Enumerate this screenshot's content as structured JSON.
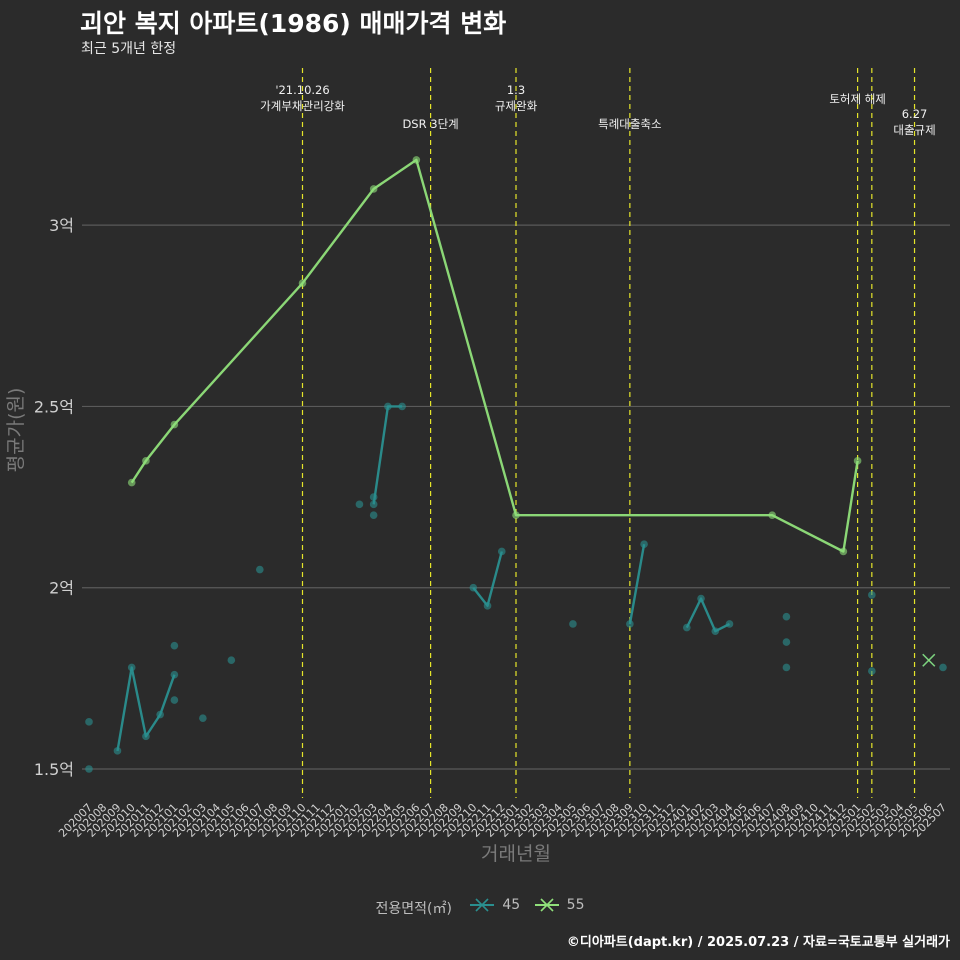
{
  "header": {
    "title": "괴안 복지 아파트(1986) 매매가격 변화",
    "subtitle": "최근 5개년 한정"
  },
  "footer": "©디아파트(dapt.kr) / 2025.07.23 / 자료=국토교통부 실거래가",
  "legend": {
    "title": "전용면적(㎡)",
    "items": [
      {
        "label": "45",
        "color": "#2a8f8f"
      },
      {
        "label": "55",
        "color": "#90e07a"
      }
    ]
  },
  "chart_data": {
    "type": "line",
    "title": "괴안 복지 아파트(1986) 매매가격 변화",
    "subtitle": "최근 5개년 한정",
    "xlabel": "거래년월",
    "ylabel": "평균가(원)",
    "ylim": [
      1.42,
      3.45
    ],
    "yticks": [
      {
        "value": 1.5,
        "label": "1.5억"
      },
      {
        "value": 2.0,
        "label": "2억"
      },
      {
        "value": 2.5,
        "label": "2.5억"
      },
      {
        "value": 3.0,
        "label": "3억"
      }
    ],
    "categories": [
      "202007",
      "202008",
      "202009",
      "202010",
      "202011",
      "202012",
      "202101",
      "202102",
      "202103",
      "202104",
      "202105",
      "202106",
      "202107",
      "202108",
      "202109",
      "202110",
      "202111",
      "202112",
      "202201",
      "202202",
      "202203",
      "202204",
      "202205",
      "202206",
      "202207",
      "202208",
      "202209",
      "202210",
      "202211",
      "202212",
      "202301",
      "202302",
      "202303",
      "202304",
      "202305",
      "202306",
      "202307",
      "202308",
      "202309",
      "202310",
      "202311",
      "202312",
      "202401",
      "202402",
      "202403",
      "202404",
      "202405",
      "202406",
      "202407",
      "202408",
      "202409",
      "202410",
      "202411",
      "202412",
      "202501",
      "202502",
      "202503",
      "202504",
      "202505",
      "202506",
      "202507"
    ],
    "series": [
      {
        "name": "45",
        "color": "#2a8f8f",
        "line_points": [
          [
            "202009",
            1.55
          ],
          [
            "202010",
            1.78
          ],
          [
            "202011",
            1.59
          ],
          [
            "202012",
            1.65
          ],
          [
            "202101",
            1.76
          ]
        ],
        "line_segments": [
          [
            [
              "202203",
              2.23
            ],
            [
              "202204",
              2.5
            ],
            [
              "202205",
              2.5
            ]
          ],
          [
            [
              "202210",
              2.0
            ],
            [
              "202211",
              1.95
            ],
            [
              "202212",
              2.1
            ]
          ],
          [
            [
              "202309",
              1.9
            ],
            [
              "202310",
              2.12
            ]
          ],
          [
            [
              "202401",
              1.89
            ],
            [
              "202402",
              1.97
            ],
            [
              "202403",
              1.88
            ],
            [
              "202404",
              1.9
            ]
          ]
        ],
        "points": [
          [
            "202007",
            1.63
          ],
          [
            "202007",
            1.5
          ],
          [
            "202101",
            1.84
          ],
          [
            "202101",
            1.69
          ],
          [
            "202103",
            1.64
          ],
          [
            "202105",
            1.8
          ],
          [
            "202107",
            2.05
          ],
          [
            "202202",
            2.23
          ],
          [
            "202203",
            2.25
          ],
          [
            "202203",
            2.2
          ],
          [
            "202305",
            1.9
          ],
          [
            "202408",
            1.92
          ],
          [
            "202408",
            1.85
          ],
          [
            "202408",
            1.78
          ],
          [
            "202502",
            1.98
          ],
          [
            "202502",
            1.77
          ],
          [
            "202507",
            1.78
          ]
        ],
        "cross": [
          [
            "202506",
            1.8
          ]
        ]
      },
      {
        "name": "55",
        "color": "#90e07a",
        "line_points": [
          [
            "202010",
            2.29
          ],
          [
            "202011",
            2.35
          ],
          [
            "202101",
            2.45
          ],
          [
            "202110",
            2.84
          ],
          [
            "202203",
            3.1
          ],
          [
            "202206",
            3.18
          ],
          [
            "202301",
            2.2
          ],
          [
            "202407",
            2.2
          ],
          [
            "202412",
            2.1
          ],
          [
            "202501",
            2.35
          ]
        ],
        "points": [
          [
            "202010",
            2.29
          ],
          [
            "202011",
            2.35
          ],
          [
            "202101",
            2.45
          ],
          [
            "202110",
            2.84
          ],
          [
            "202203",
            3.1
          ],
          [
            "202206",
            3.18
          ],
          [
            "202301",
            2.2
          ],
          [
            "202407",
            2.2
          ],
          [
            "202412",
            2.1
          ],
          [
            "202501",
            2.35
          ]
        ],
        "cross": [
          [
            "202506",
            1.8
          ]
        ]
      }
    ],
    "events": [
      {
        "x": "202110",
        "lines": [
          "'21.10.26",
          "가계부채관리강화"
        ],
        "row": 0
      },
      {
        "x": "202207",
        "lines": [
          "DSR 3단계"
        ],
        "row": 2
      },
      {
        "x": "202301",
        "lines": [
          "1.3",
          "규제완화"
        ],
        "row": 0
      },
      {
        "x": "202309",
        "lines": [
          "특례대출축소"
        ],
        "row": 2
      },
      {
        "x": "202501",
        "lines": [
          "토허제 해제"
        ],
        "row": 1,
        "align": "center-offset"
      },
      {
        "x": "202502",
        "lines": [],
        "row": 1
      },
      {
        "x": "202505",
        "lines": [
          "6.27",
          "대출규제"
        ],
        "row": 3
      }
    ],
    "grid": true,
    "legend_position": "bottom"
  }
}
